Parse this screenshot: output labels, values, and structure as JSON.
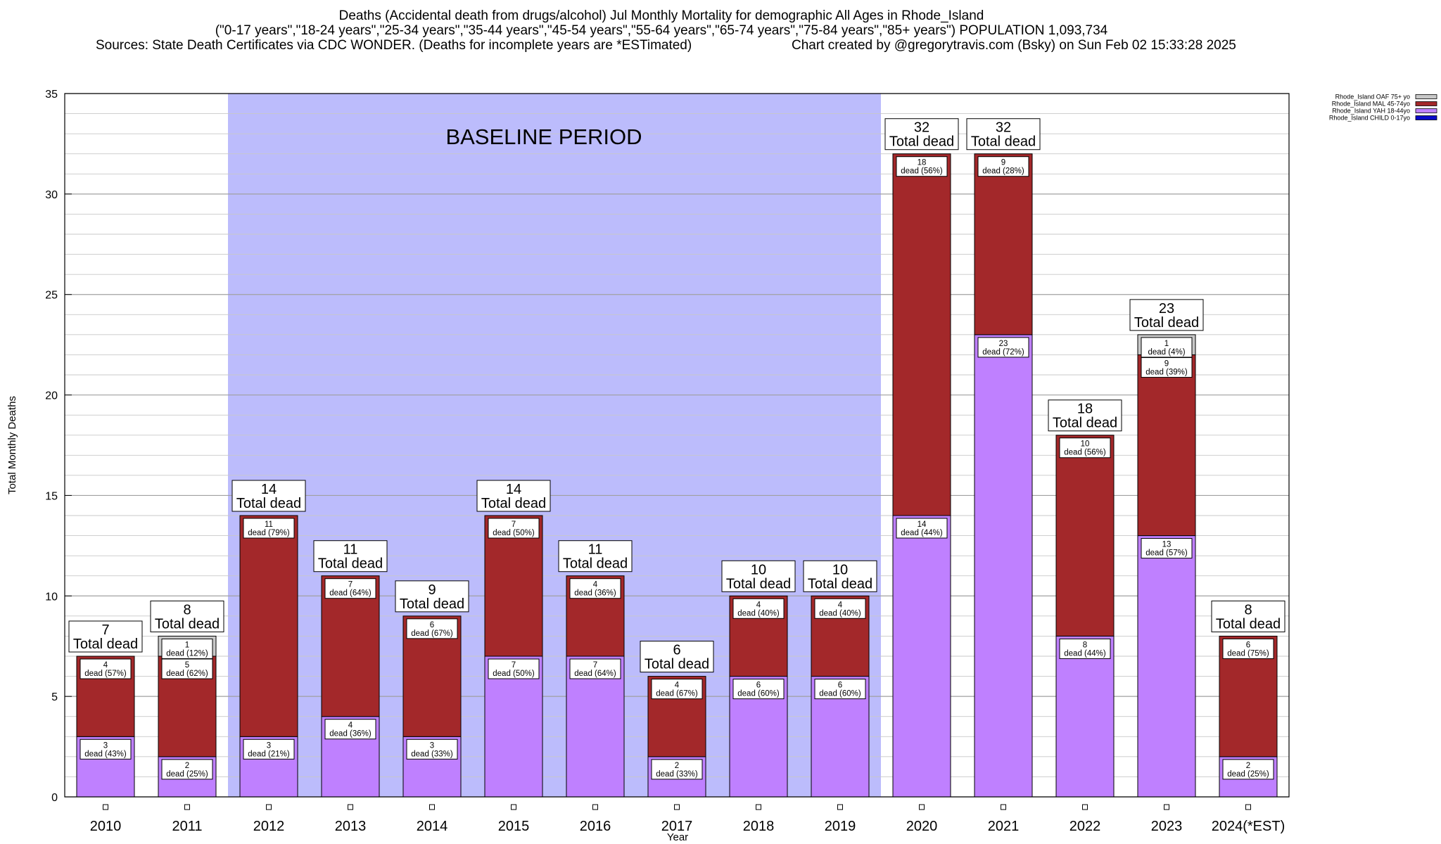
{
  "header": {
    "title": "Deaths (Accidental death from drugs/alcohol) Jul Monthly Mortality for demographic All Ages in Rhode_Island",
    "subtitle": "(\"0-17 years\",\"18-24 years\",\"25-34 years\",\"35-44 years\",\"45-54 years\",\"55-64 years\",\"65-74 years\",\"75-84 years\",\"85+ years\") POPULATION 1,093,734",
    "sources": "Sources: State Death Certificates via CDC WONDER. (Deaths for incomplete years are *ESTimated)",
    "credit": "Chart created by @gregorytravis.com (Bsky) on Sun Feb 02 15:33:28 2025"
  },
  "chart_data": {
    "type": "bar",
    "stacked": true,
    "categories": [
      "2010",
      "2011",
      "2012",
      "2013",
      "2014",
      "2015",
      "2016",
      "2017",
      "2018",
      "2019",
      "2020",
      "2021",
      "2022",
      "2023",
      "2024(*EST)"
    ],
    "series": [
      {
        "name": "Rhode_Island CHILD 0-17yo",
        "color": "#0a0ac8",
        "values": [
          0,
          0,
          0,
          0,
          0,
          0,
          0,
          0,
          0,
          0,
          0,
          0,
          0,
          0,
          0
        ]
      },
      {
        "name": "Rhode_Island YAH 18-44yo",
        "color": "#bf80ff",
        "values": [
          3,
          2,
          3,
          4,
          3,
          7,
          7,
          2,
          6,
          6,
          14,
          23,
          8,
          13,
          2
        ]
      },
      {
        "name": "Rhode_Island MAL 45-74yo",
        "color": "#a3282a",
        "values": [
          4,
          5,
          11,
          7,
          6,
          7,
          4,
          4,
          4,
          4,
          18,
          9,
          10,
          9,
          6
        ]
      },
      {
        "name": "Rhode_Island OAF 75+ yo",
        "color": "#c8c8c8",
        "values": [
          0,
          1,
          0,
          0,
          0,
          0,
          0,
          0,
          0,
          0,
          0,
          0,
          0,
          1,
          0
        ]
      }
    ],
    "totals": [
      7,
      8,
      14,
      11,
      9,
      14,
      11,
      6,
      10,
      10,
      32,
      32,
      18,
      23,
      8
    ],
    "segment_labels": [
      {
        "year_index": 0,
        "series": "YAH",
        "count": "3",
        "text": "dead (43%)"
      },
      {
        "year_index": 0,
        "series": "MAL",
        "count": "4",
        "text": "dead (57%)"
      },
      {
        "year_index": 1,
        "series": "YAH",
        "count": "2",
        "text": "dead (25%)"
      },
      {
        "year_index": 1,
        "series": "MAL",
        "count": "5",
        "text": "dead (62%)"
      },
      {
        "year_index": 1,
        "series": "OAF",
        "count": "1",
        "text": "dead (12%)"
      },
      {
        "year_index": 2,
        "series": "YAH",
        "count": "3",
        "text": "dead (21%)"
      },
      {
        "year_index": 2,
        "series": "MAL",
        "count": "11",
        "text": "dead (79%)"
      },
      {
        "year_index": 3,
        "series": "YAH",
        "count": "4",
        "text": "dead (36%)"
      },
      {
        "year_index": 3,
        "series": "MAL",
        "count": "7",
        "text": "dead (64%)"
      },
      {
        "year_index": 4,
        "series": "YAH",
        "count": "3",
        "text": "dead (33%)"
      },
      {
        "year_index": 4,
        "series": "MAL",
        "count": "6",
        "text": "dead (67%)"
      },
      {
        "year_index": 5,
        "series": "YAH",
        "count": "7",
        "text": "dead (50%)"
      },
      {
        "year_index": 5,
        "series": "MAL",
        "count": "7",
        "text": "dead (50%)"
      },
      {
        "year_index": 6,
        "series": "YAH",
        "count": "7",
        "text": "dead (64%)"
      },
      {
        "year_index": 6,
        "series": "MAL",
        "count": "4",
        "text": "dead (36%)"
      },
      {
        "year_index": 7,
        "series": "YAH",
        "count": "2",
        "text": "dead (33%)"
      },
      {
        "year_index": 7,
        "series": "MAL",
        "count": "4",
        "text": "dead (67%)"
      },
      {
        "year_index": 8,
        "series": "YAH",
        "count": "6",
        "text": "dead (60%)"
      },
      {
        "year_index": 8,
        "series": "MAL",
        "count": "4",
        "text": "dead (40%)"
      },
      {
        "year_index": 9,
        "series": "YAH",
        "count": "6",
        "text": "dead (60%)"
      },
      {
        "year_index": 9,
        "series": "MAL",
        "count": "4",
        "text": "dead (40%)"
      },
      {
        "year_index": 10,
        "series": "YAH",
        "count": "14",
        "text": "dead (44%)"
      },
      {
        "year_index": 10,
        "series": "MAL",
        "count": "18",
        "text": "dead (56%)"
      },
      {
        "year_index": 11,
        "series": "YAH",
        "count": "23",
        "text": "dead (72%)"
      },
      {
        "year_index": 11,
        "series": "MAL",
        "count": "9",
        "text": "dead (28%)"
      },
      {
        "year_index": 12,
        "series": "YAH",
        "count": "8",
        "text": "dead (44%)"
      },
      {
        "year_index": 12,
        "series": "MAL",
        "count": "10",
        "text": "dead (56%)"
      },
      {
        "year_index": 13,
        "series": "YAH",
        "count": "13",
        "text": "dead (57%)"
      },
      {
        "year_index": 13,
        "series": "MAL",
        "count": "9",
        "text": "dead (39%)"
      },
      {
        "year_index": 13,
        "series": "OAF",
        "count": "1",
        "text": "dead (4%)"
      },
      {
        "year_index": 14,
        "series": "YAH",
        "count": "2",
        "text": "dead (25%)"
      },
      {
        "year_index": 14,
        "series": "MAL",
        "count": "6",
        "text": "dead (75%)"
      }
    ],
    "total_label_suffix": "Total dead",
    "ylabel": "Total Monthly Deaths",
    "xlabel": "Year",
    "ylim": [
      0,
      35
    ],
    "yticks": [
      0,
      5,
      10,
      15,
      20,
      25,
      30,
      35
    ],
    "y_minor_step": 1,
    "grid": true,
    "legend_position": "top-right",
    "baseline": {
      "label": "BASELINE PERIOD",
      "from": "2012",
      "to": "2019",
      "color": "#bcbcfc"
    }
  }
}
